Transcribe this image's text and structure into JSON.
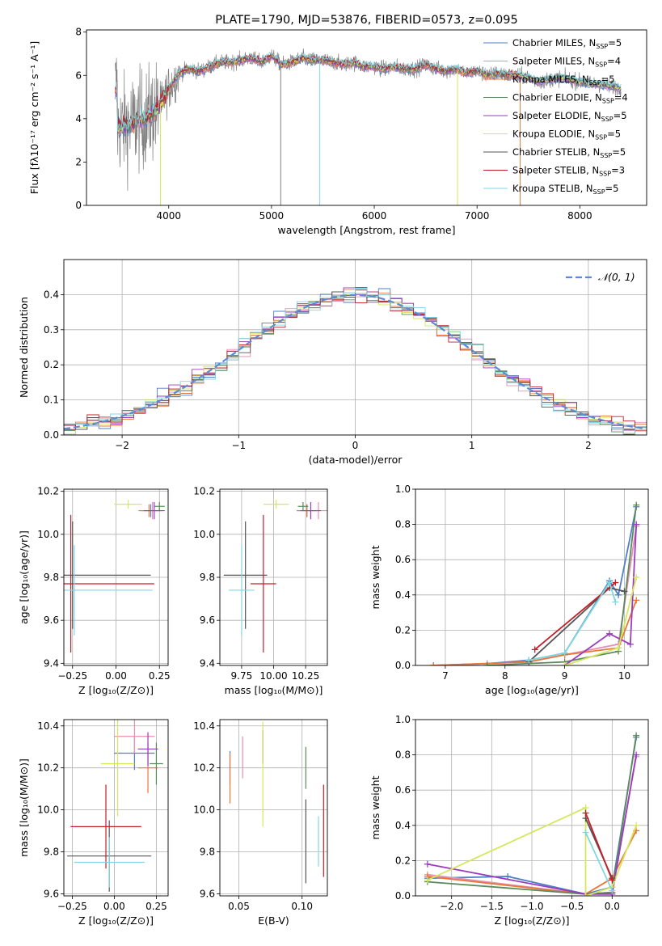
{
  "palette": {
    "Chabrier MILES": "#4e7fc9",
    "Salpeter MILES": "#e58fb5",
    "Kroupa MILES": "#e8773a",
    "Chabrier ELODIE": "#5c8a5c",
    "Salpeter ELODIE": "#9a3cc0",
    "Kroupa ELODIE": "#d5e85c",
    "Chabrier STELIB": "#555555",
    "Salpeter STELIB": "#c41e2a",
    "Kroupa STELIB": "#7fd8e0",
    "gaussian": "#5b8bd6",
    "grid": "#b0b0b0",
    "spectrum_gray": "#808080"
  },
  "chart_data": [
    {
      "id": "spectrum",
      "type": "line",
      "title": "PLATE=1790, MJD=53876, FIBERID=0573, z=0.095",
      "xlabel": "wavelength [Angstrom, rest frame]",
      "ylabel": "Flux [fλ10⁻¹⁷ erg cm⁻² s⁻¹ A⁻¹]",
      "xlim": [
        3200,
        8650
      ],
      "ylim": [
        0,
        8.1
      ],
      "xticks": [
        4000,
        5000,
        6000,
        7000,
        8000
      ],
      "yticks": [
        0,
        2,
        4,
        6,
        8
      ],
      "grid": false,
      "legend_placement": "upper-right",
      "legend": [
        {
          "name": "Chabrier MILES",
          "nssp": "5"
        },
        {
          "name": "Salpeter MILES",
          "nssp": "4"
        },
        {
          "name": "Kroupa MILES",
          "nssp": "5"
        },
        {
          "name": "Chabrier ELODIE",
          "nssp": "4"
        },
        {
          "name": "Salpeter ELODIE",
          "nssp": "5"
        },
        {
          "name": "Kroupa ELODIE",
          "nssp": "5"
        },
        {
          "name": "Chabrier STELIB",
          "nssp": "5"
        },
        {
          "name": "Salpeter STELIB",
          "nssp": "3"
        },
        {
          "name": "Kroupa STELIB",
          "nssp": "5"
        }
      ],
      "data": {
        "x": [
          3500,
          3600,
          3700,
          3800,
          3900,
          4000,
          4100,
          4200,
          4300,
          4400,
          4500,
          4600,
          4700,
          4800,
          4900,
          5000,
          5100,
          5200,
          5300,
          5400,
          5500,
          5600,
          5700,
          5800,
          5900,
          6000,
          6100,
          6200,
          6300,
          6400,
          6500,
          6600,
          6700,
          6800,
          6900,
          7000,
          7100,
          7200,
          7300,
          7400,
          7500,
          7600,
          7700,
          7800,
          7900,
          8000,
          8100,
          8200,
          8300,
          8400
        ],
        "y": [
          3.6,
          3.7,
          3.9,
          4.1,
          4.5,
          5.4,
          6.1,
          6.3,
          6.2,
          6.4,
          6.6,
          6.6,
          6.7,
          6.8,
          6.6,
          6.9,
          6.5,
          6.6,
          6.8,
          6.7,
          6.7,
          6.6,
          6.5,
          6.6,
          6.4,
          6.4,
          6.3,
          6.4,
          6.3,
          6.3,
          6.5,
          6.3,
          6.2,
          6.3,
          6.1,
          6.2,
          6.0,
          6.1,
          6.0,
          6.0,
          5.9,
          5.7,
          5.8,
          5.9,
          5.8,
          5.7,
          5.6,
          5.6,
          5.5,
          5.4
        ]
      }
    },
    {
      "id": "residuals",
      "type": "line",
      "title": "",
      "xlabel": "(data-model)/error",
      "ylabel": "Normed distribution",
      "xlim": [
        -2.5,
        2.5
      ],
      "ylim": [
        0,
        0.5
      ],
      "xticks": [
        -2,
        -1,
        0,
        1,
        2
      ],
      "yticks": [
        0.0,
        0.1,
        0.2,
        0.3,
        0.4
      ],
      "xticklabels": [
        "−2",
        "−1",
        "0",
        "1",
        "2"
      ],
      "yticklabels": [
        "0.0",
        "0.1",
        "0.2",
        "0.3",
        "0.4"
      ],
      "grid": true,
      "legend_placement": "upper-right",
      "legend": [
        {
          "name": "𝒩(0, 1)"
        }
      ],
      "data": {
        "bin_width": 0.1,
        "x_start": -2.5,
        "reference": "N(0,1)"
      }
    },
    {
      "id": "age_vs_Z",
      "type": "scatter",
      "xlabel": "Z [log₁₀(Z/Z⊙)]",
      "ylabel": "age  [log₁₀(age/yr)]",
      "xlim": [
        -0.3,
        0.3
      ],
      "ylim": [
        9.39,
        10.21
      ],
      "xticks": [
        -0.25,
        0.0,
        0.25
      ],
      "xticklabels": [
        "−0.25",
        "0.00",
        "0.25"
      ],
      "yticks": [
        9.4,
        9.6,
        9.8,
        10.0,
        10.2
      ],
      "yticklabels": [
        "9.4",
        "9.6",
        "9.8",
        "10.0",
        "10.2"
      ],
      "grid": true,
      "points": [
        {
          "name": "Chabrier MILES",
          "x": 0.2,
          "y": 10.11,
          "xerr": 0.06,
          "yerr": 0.03
        },
        {
          "name": "Salpeter MILES",
          "x": 0.21,
          "y": 10.11,
          "xerr": 0.06,
          "yerr": 0.04
        },
        {
          "name": "Kroupa MILES",
          "x": 0.19,
          "y": 10.11,
          "xerr": 0.06,
          "yerr": 0.03
        },
        {
          "name": "Chabrier ELODIE",
          "x": 0.25,
          "y": 10.13,
          "xerr": 0.03,
          "yerr": 0.02
        },
        {
          "name": "Salpeter ELODIE",
          "x": 0.22,
          "y": 10.11,
          "xerr": 0.06,
          "yerr": 0.04
        },
        {
          "name": "Kroupa ELODIE",
          "x": 0.07,
          "y": 10.14,
          "xerr": 0.08,
          "yerr": 0.02
        },
        {
          "name": "Chabrier STELIB",
          "x": -0.25,
          "y": 9.81,
          "xerr": 0.45,
          "yerr": 0.25
        },
        {
          "name": "Salpeter STELIB",
          "x": -0.26,
          "y": 9.77,
          "xerr": 0.48,
          "yerr": 0.32
        },
        {
          "name": "Kroupa STELIB",
          "x": -0.24,
          "y": 9.74,
          "xerr": 0.45,
          "yerr": 0.21
        }
      ]
    },
    {
      "id": "age_vs_mass",
      "type": "scatter",
      "xlabel": "mass [log₁₀(M/M⊙)]",
      "ylabel": "",
      "xlim": [
        9.58,
        10.42
      ],
      "ylim": [
        9.39,
        10.21
      ],
      "xticks": [
        9.75,
        10.0,
        10.25
      ],
      "xticklabels": [
        "9.75",
        "10.00",
        "10.25"
      ],
      "yticks": [
        9.4,
        9.6,
        9.8,
        10.0,
        10.2
      ],
      "yticklabels": [
        "9.4",
        "9.6",
        "9.8",
        "10.0",
        "10.2"
      ],
      "grid": true,
      "points": [
        {
          "name": "Chabrier MILES",
          "x": 10.26,
          "y": 10.11,
          "xerr": 0.08,
          "yerr": 0.03
        },
        {
          "name": "Salpeter MILES",
          "x": 10.35,
          "y": 10.11,
          "xerr": 0.08,
          "yerr": 0.04
        },
        {
          "name": "Kroupa MILES",
          "x": 10.26,
          "y": 10.11,
          "xerr": 0.08,
          "yerr": 0.03
        },
        {
          "name": "Chabrier ELODIE",
          "x": 10.23,
          "y": 10.13,
          "xerr": 0.04,
          "yerr": 0.02
        },
        {
          "name": "Salpeter ELODIE",
          "x": 10.29,
          "y": 10.11,
          "xerr": 0.08,
          "yerr": 0.04
        },
        {
          "name": "Kroupa ELODIE",
          "x": 10.02,
          "y": 10.14,
          "xerr": 0.1,
          "yerr": 0.02
        },
        {
          "name": "Chabrier STELIB",
          "x": 9.78,
          "y": 9.81,
          "xerr": 0.17,
          "yerr": 0.25
        },
        {
          "name": "Salpeter STELIB",
          "x": 9.92,
          "y": 9.77,
          "xerr": 0.1,
          "yerr": 0.32
        },
        {
          "name": "Kroupa STELIB",
          "x": 9.75,
          "y": 9.74,
          "xerr": 0.1,
          "yerr": 0.21
        }
      ]
    },
    {
      "id": "weight_vs_age",
      "type": "line",
      "xlabel": "age  [log₁₀(age/yr)]",
      "ylabel": "mass weight",
      "xlim": [
        6.5,
        10.4
      ],
      "ylim": [
        0,
        1.0
      ],
      "xticks": [
        7,
        8,
        9,
        10
      ],
      "xticklabels": [
        "7",
        "8",
        "9",
        "10"
      ],
      "yticks": [
        0.0,
        0.2,
        0.4,
        0.6,
        0.8,
        1.0
      ],
      "yticklabels": [
        "0.0",
        "0.2",
        "0.4",
        "0.6",
        "0.8",
        "1.0"
      ],
      "grid": true,
      "series": [
        {
          "name": "Chabrier MILES",
          "x": [
            6.8,
            7.7,
            8.4,
            9.0,
            9.75,
            9.9,
            10.2
          ],
          "y": [
            0.0,
            0.01,
            0.03,
            0.07,
            0.48,
            0.4,
            0.9
          ]
        },
        {
          "name": "Salpeter MILES",
          "x": [
            6.8,
            7.7,
            8.4,
            9.0,
            9.9,
            10.2
          ],
          "y": [
            0.0,
            0.01,
            0.02,
            0.06,
            0.12,
            0.79
          ]
        },
        {
          "name": "Kroupa MILES",
          "x": [
            6.8,
            8.4,
            9.0,
            9.9,
            10.2
          ],
          "y": [
            0.0,
            0.02,
            0.06,
            0.1,
            0.37
          ]
        },
        {
          "name": "Chabrier ELODIE",
          "x": [
            7.7,
            9.0,
            9.9,
            10.2
          ],
          "y": [
            0.0,
            0.02,
            0.08,
            0.91
          ]
        },
        {
          "name": "Salpeter ELODIE",
          "x": [
            9.0,
            9.75,
            10.1,
            10.2
          ],
          "y": [
            0.0,
            0.18,
            0.12,
            0.8
          ]
        },
        {
          "name": "Kroupa ELODIE",
          "x": [
            9.0,
            9.9,
            10.2
          ],
          "y": [
            0.0,
            0.1,
            0.5
          ]
        },
        {
          "name": "Chabrier STELIB",
          "x": [
            8.4,
            9.75,
            10.0
          ],
          "y": [
            0.02,
            0.44,
            0.42
          ]
        },
        {
          "name": "Salpeter STELIB",
          "x": [
            8.5,
            9.85
          ],
          "y": [
            0.09,
            0.47
          ]
        },
        {
          "name": "Kroupa STELIB",
          "x": [
            8.4,
            9.0,
            9.75,
            9.85
          ],
          "y": [
            0.03,
            0.07,
            0.47,
            0.36
          ]
        }
      ]
    },
    {
      "id": "mass_vs_Z",
      "type": "scatter",
      "xlabel": "Z [log₁₀(Z/Z⊙)]",
      "ylabel": "mass [log₁₀(M/M⊙)]",
      "xlim": [
        -0.3,
        0.32
      ],
      "ylim": [
        9.59,
        10.43
      ],
      "xticks": [
        -0.25,
        0.0,
        0.25
      ],
      "xticklabels": [
        "−0.25",
        "0.00",
        "0.25"
      ],
      "yticks": [
        9.6,
        9.8,
        10.0,
        10.2,
        10.4
      ],
      "yticklabels": [
        "9.6",
        "9.8",
        "10.0",
        "10.2",
        "10.4"
      ],
      "grid": true,
      "points": [
        {
          "name": "Chabrier MILES",
          "x": 0.12,
          "y": 10.27,
          "xerr": 0.12,
          "yerr": 0.08
        },
        {
          "name": "Salpeter MILES",
          "x": 0.12,
          "y": 10.35,
          "xerr": 0.12,
          "yerr": 0.08
        },
        {
          "name": "Kroupa MILES",
          "x": 0.2,
          "y": 10.2,
          "xerr": 0.06,
          "yerr": 0.12
        },
        {
          "name": "Chabrier ELODIE",
          "x": 0.25,
          "y": 10.22,
          "xerr": 0.04,
          "yerr": 0.1
        },
        {
          "name": "Salpeter ELODIE",
          "x": 0.2,
          "y": 10.29,
          "xerr": 0.06,
          "yerr": 0.08
        },
        {
          "name": "Kroupa ELODIE",
          "x": 0.02,
          "y": 10.22,
          "xerr": 0.1,
          "yerr": 0.25
        },
        {
          "name": "Chabrier STELIB",
          "x": -0.03,
          "y": 9.78,
          "xerr": 0.25,
          "yerr": 0.17
        },
        {
          "name": "Salpeter STELIB",
          "x": -0.05,
          "y": 9.92,
          "xerr": 0.21,
          "yerr": 0.2
        },
        {
          "name": "Kroupa STELIB",
          "x": -0.03,
          "y": 9.75,
          "xerr": 0.21,
          "yerr": 0.12
        }
      ]
    },
    {
      "id": "mass_vs_ebv",
      "type": "scatter",
      "xlabel": "E(B-V)",
      "ylabel": "",
      "xlim": [
        0.035,
        0.12
      ],
      "ylim": [
        9.59,
        10.43
      ],
      "xticks": [
        0.05,
        0.1
      ],
      "xticklabels": [
        "0.05",
        "0.10"
      ],
      "yticks": [
        9.6,
        9.8,
        10.0,
        10.2,
        10.4
      ],
      "yticklabels": [
        "9.6",
        "9.8",
        "10.0",
        "10.2",
        "10.4"
      ],
      "grid": true,
      "points": [
        {
          "name": "Chabrier MILES",
          "x": 0.043,
          "y": 10.2,
          "yerr": 0.08
        },
        {
          "name": "Salpeter MILES",
          "x": 0.053,
          "y": 10.25,
          "yerr": 0.1
        },
        {
          "name": "Kroupa MILES",
          "x": 0.043,
          "y": 10.15,
          "yerr": 0.12
        },
        {
          "name": "Chabrier ELODIE",
          "x": 0.103,
          "y": 10.2,
          "yerr": 0.1
        },
        {
          "name": "Salpeter ELODIE",
          "x": 0.069,
          "y": 10.3,
          "yerr": 0.08
        },
        {
          "name": "Kroupa ELODIE",
          "x": 0.069,
          "y": 10.17,
          "yerr": 0.25
        },
        {
          "name": "Chabrier STELIB",
          "x": 0.103,
          "y": 9.85,
          "yerr": 0.2
        },
        {
          "name": "Salpeter STELIB",
          "x": 0.117,
          "y": 9.9,
          "yerr": 0.22
        },
        {
          "name": "Kroupa STELIB",
          "x": 0.113,
          "y": 9.85,
          "yerr": 0.12
        }
      ]
    },
    {
      "id": "weight_vs_Z",
      "type": "line",
      "xlabel": "Z [log₁₀(Z/Z⊙)]",
      "ylabel": "mass weight",
      "xlim": [
        -2.45,
        0.45
      ],
      "ylim": [
        0,
        1.0
      ],
      "xticks": [
        -2.0,
        -1.5,
        -1.0,
        -0.5,
        0.0
      ],
      "xticklabels": [
        "−2.0",
        "−1.5",
        "−1.0",
        "−0.5",
        "0.0"
      ],
      "yticks": [
        0.0,
        0.2,
        0.4,
        0.6,
        0.8,
        1.0
      ],
      "yticklabels": [
        "0.0",
        "0.2",
        "0.4",
        "0.6",
        "0.8",
        "1.0"
      ],
      "grid": true,
      "series": [
        {
          "name": "Chabrier MILES",
          "x": [
            -2.3,
            -1.3,
            -0.33,
            0.0,
            0.3
          ],
          "y": [
            0.1,
            0.11,
            0.01,
            0.05,
            0.9
          ]
        },
        {
          "name": "Salpeter MILES",
          "x": [
            -2.3,
            -0.33,
            0.0,
            0.3
          ],
          "y": [
            0.12,
            0.01,
            0.02,
            0.79
          ]
        },
        {
          "name": "Kroupa MILES",
          "x": [
            -2.3,
            -0.33,
            0.0,
            0.3
          ],
          "y": [
            0.11,
            0.01,
            0.1,
            0.37
          ]
        },
        {
          "name": "Chabrier ELODIE",
          "x": [
            -2.3,
            -0.33,
            0.0,
            0.3
          ],
          "y": [
            0.08,
            0.01,
            0.02,
            0.91
          ]
        },
        {
          "name": "Salpeter ELODIE",
          "x": [
            -2.3,
            -0.33,
            0.0,
            0.3
          ],
          "y": [
            0.18,
            0.01,
            0.01,
            0.8
          ]
        },
        {
          "name": "Kroupa ELODIE",
          "x": [
            -2.3,
            -0.33,
            -0.33,
            0.0,
            0.3
          ],
          "y": [
            0.09,
            0.5,
            0.0,
            0.05,
            0.4
          ]
        },
        {
          "name": "Chabrier STELIB",
          "x": [
            -0.33,
            0.0
          ],
          "y": [
            0.44,
            0.1
          ]
        },
        {
          "name": "Salpeter STELIB",
          "x": [
            -0.33,
            0.0
          ],
          "y": [
            0.47,
            0.09
          ]
        },
        {
          "name": "Kroupa STELIB",
          "x": [
            -0.33,
            0.0
          ],
          "y": [
            0.36,
            0.03
          ]
        }
      ]
    }
  ]
}
